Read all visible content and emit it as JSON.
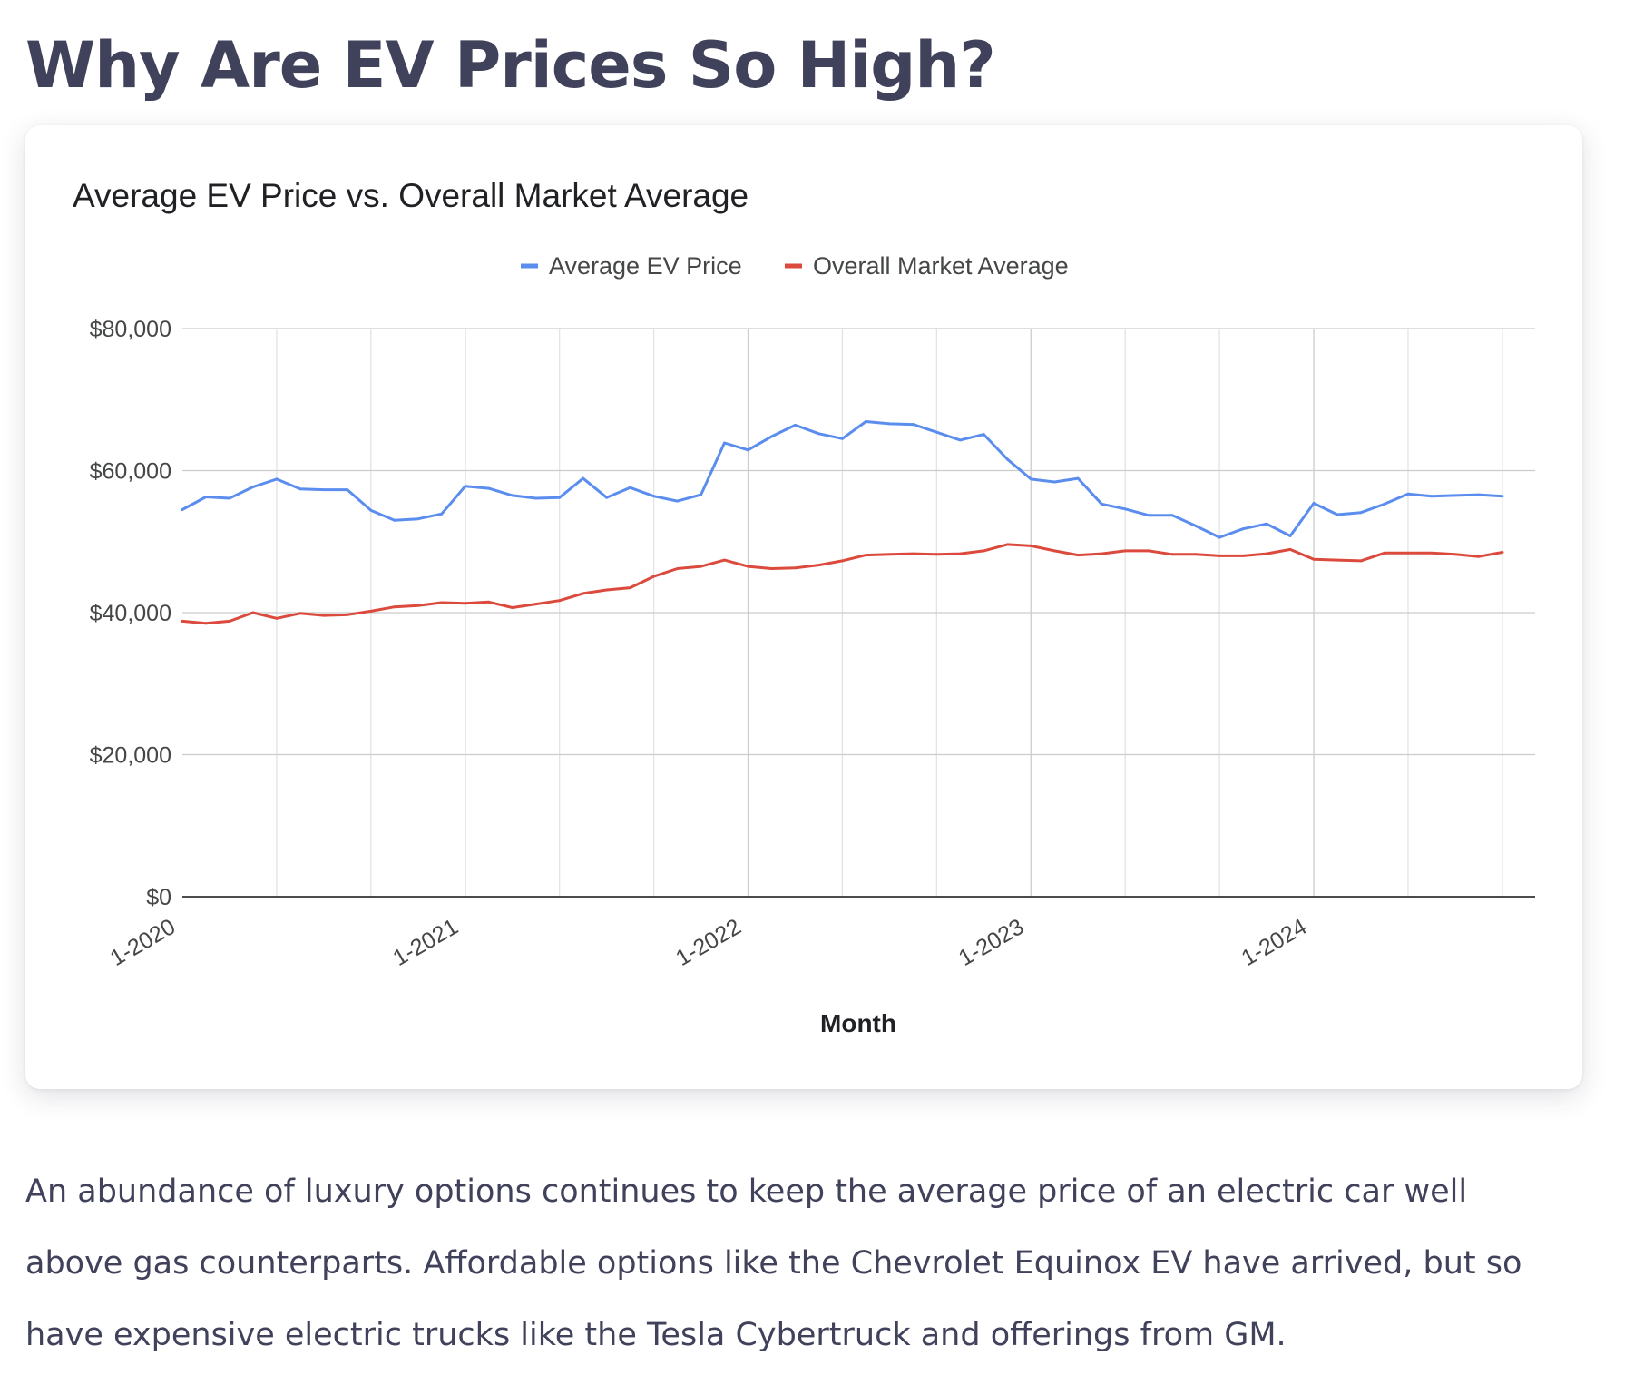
{
  "article": {
    "heading": "Why Are EV Prices So High?",
    "paragraph_lines": [
      "An abundance of luxury options continues to keep the average price of an electric car well",
      "above gas counterparts. Affordable options like the Chevrolet Equinox EV have arrived, but so",
      "have expensive electric trucks like the Tesla Cybertruck and offerings from GM."
    ]
  },
  "chart_data": {
    "type": "line",
    "title": "Average EV Price vs. Overall Market Average",
    "xlabel": "Month",
    "ylabel": "",
    "ylim": [
      0,
      80000
    ],
    "yticks": [
      0,
      20000,
      40000,
      60000,
      80000
    ],
    "ytick_labels": [
      "$0",
      "$20,000",
      "$40,000",
      "$60,000",
      "$80,000"
    ],
    "x_start": "1-2020",
    "x_step": "1 month",
    "xtick_labels": [
      "1-2020",
      "1-2021",
      "1-2022",
      "1-2023",
      "1-2024"
    ],
    "grid": true,
    "legend_position": "top",
    "series": [
      {
        "name": "Average EV Price",
        "color": "#5b8def",
        "values": [
          54500,
          56300,
          56100,
          57700,
          58800,
          57400,
          57300,
          57300,
          54400,
          53000,
          53200,
          53900,
          57800,
          57500,
          56500,
          56100,
          56200,
          58900,
          56200,
          57600,
          56400,
          55700,
          56600,
          63900,
          62900,
          64800,
          66400,
          65200,
          64500,
          66900,
          66600,
          66500,
          65400,
          64300,
          65100,
          61600,
          58800,
          58400,
          58900,
          55300,
          54600,
          53700,
          53700,
          52200,
          50600,
          51800,
          52500,
          50800,
          55400,
          53800,
          54100,
          55300,
          56700,
          56400,
          56500,
          56600,
          56400
        ]
      },
      {
        "name": "Overall Market Average",
        "color": "#db4a3d",
        "values": [
          38800,
          38500,
          38800,
          40000,
          39200,
          39900,
          39600,
          39700,
          40200,
          40800,
          41000,
          41400,
          41300,
          41500,
          40700,
          41200,
          41700,
          42700,
          43200,
          43500,
          45100,
          46200,
          46500,
          47400,
          46500,
          46200,
          46300,
          46700,
          47300,
          48100,
          48200,
          48300,
          48200,
          48300,
          48700,
          49600,
          49400,
          48700,
          48100,
          48300,
          48700,
          48700,
          48200,
          48200,
          48000,
          48000,
          48300,
          48900,
          47500,
          47400,
          47300,
          48400,
          48400,
          48400,
          48200,
          47900,
          48500
        ]
      }
    ]
  }
}
